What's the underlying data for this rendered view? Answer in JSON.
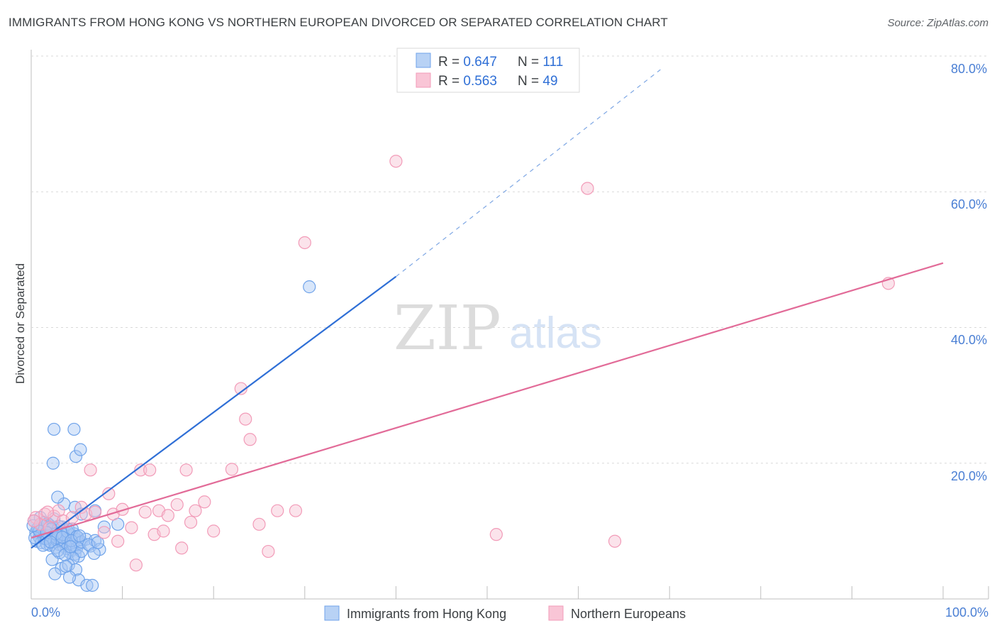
{
  "title": "IMMIGRANTS FROM HONG KONG VS NORTHERN EUROPEAN DIVORCED OR SEPARATED CORRELATION CHART",
  "source": "Source: ZipAtlas.com",
  "watermark": {
    "zip": "ZIP",
    "atlas": "atlas"
  },
  "colors": {
    "blue": "#6fa3ea",
    "blue_line": "#2f6fd6",
    "pink": "#f29bb8",
    "pink_line": "#e26b98",
    "axis_text": "#4a7fd4",
    "grid": "#d9d9d9"
  },
  "chart_data": {
    "type": "scatter",
    "xlabel": "",
    "ylabel": "Divorced or Separated",
    "xlim": [
      0,
      100
    ],
    "ylim": [
      0,
      80
    ],
    "x_tick_labels": [
      "0.0%",
      "100.0%"
    ],
    "y_tick_labels": [
      "20.0%",
      "40.0%",
      "60.0%",
      "80.0%"
    ],
    "y_ticks": [
      20,
      40,
      60,
      80
    ],
    "legend": [
      {
        "r_label": "R = ",
        "r": "0.647",
        "n_label": "N = ",
        "n": "111"
      },
      {
        "r_label": "R = ",
        "r": "0.563",
        "n_label": "N = ",
        "n": "49"
      }
    ],
    "series": [
      {
        "name": "Immigrants from Hong Kong",
        "color": "blue",
        "trend": {
          "x0": 0,
          "y0": 7.5,
          "x1": 40,
          "y1": 47.5,
          "dash_to_x": 69,
          "dash_to_y": 78
        },
        "points": [
          [
            0.3,
            11.5
          ],
          [
            0.5,
            9.8
          ],
          [
            0.6,
            8.5
          ],
          [
            0.8,
            10.2
          ],
          [
            0.9,
            9.1
          ],
          [
            1.0,
            11.0
          ],
          [
            1.1,
            8.3
          ],
          [
            1.2,
            9.6
          ],
          [
            1.3,
            10.5
          ],
          [
            1.4,
            8.9
          ],
          [
            1.5,
            9.4
          ],
          [
            1.6,
            10.0
          ],
          [
            1.7,
            8.1
          ],
          [
            1.8,
            9.0
          ],
          [
            1.9,
            10.8
          ],
          [
            2.0,
            9.3
          ],
          [
            2.1,
            7.9
          ],
          [
            2.2,
            8.8
          ],
          [
            2.3,
            10.1
          ],
          [
            2.4,
            9.5
          ],
          [
            2.5,
            8.4
          ],
          [
            2.6,
            9.9
          ],
          [
            2.7,
            7.6
          ],
          [
            2.8,
            8.7
          ],
          [
            2.9,
            10.4
          ],
          [
            3.0,
            9.2
          ],
          [
            3.1,
            8.0
          ],
          [
            3.2,
            9.7
          ],
          [
            3.3,
            8.6
          ],
          [
            3.4,
            10.6
          ],
          [
            3.5,
            7.8
          ],
          [
            3.6,
            9.0
          ],
          [
            3.7,
            8.3
          ],
          [
            3.8,
            9.8
          ],
          [
            3.9,
            7.4
          ],
          [
            4.0,
            8.9
          ],
          [
            4.1,
            10.2
          ],
          [
            4.2,
            6.9
          ],
          [
            4.3,
            8.5
          ],
          [
            4.4,
            9.4
          ],
          [
            4.5,
            7.2
          ],
          [
            4.6,
            8.0
          ],
          [
            4.7,
            9.6
          ],
          [
            4.8,
            6.6
          ],
          [
            4.9,
            8.8
          ],
          [
            5.0,
            7.5
          ],
          [
            5.1,
            9.1
          ],
          [
            5.2,
            6.3
          ],
          [
            5.3,
            8.2
          ],
          [
            5.5,
            7.0
          ],
          [
            1.0,
            12.0
          ],
          [
            1.5,
            11.3
          ],
          [
            2.0,
            10.9
          ],
          [
            2.5,
            11.8
          ],
          [
            3.0,
            10.7
          ],
          [
            0.7,
            10.4
          ],
          [
            1.2,
            10.9
          ],
          [
            1.8,
            11.1
          ],
          [
            2.2,
            10.3
          ],
          [
            2.8,
            9.0
          ],
          [
            3.5,
            9.5
          ],
          [
            4.0,
            9.9
          ],
          [
            4.5,
            10.3
          ],
          [
            5.0,
            9.2
          ],
          [
            5.5,
            8.4
          ],
          [
            6.0,
            8.8
          ],
          [
            6.5,
            7.8
          ],
          [
            7.0,
            8.6
          ],
          [
            7.5,
            7.3
          ],
          [
            8.0,
            10.6
          ],
          [
            3.6,
            14.0
          ],
          [
            2.9,
            15.0
          ],
          [
            4.8,
            13.5
          ],
          [
            7.0,
            13.0
          ],
          [
            5.5,
            12.5
          ],
          [
            9.5,
            11.0
          ],
          [
            2.4,
            20.0
          ],
          [
            4.6,
            6.0
          ],
          [
            3.3,
            4.5
          ],
          [
            4.1,
            5.0
          ],
          [
            4.9,
            4.3
          ],
          [
            2.6,
            3.7
          ],
          [
            3.1,
            6.8
          ],
          [
            2.3,
            5.8
          ],
          [
            5.2,
            2.8
          ],
          [
            4.2,
            3.2
          ],
          [
            6.1,
            2.0
          ],
          [
            6.7,
            2.0
          ],
          [
            3.8,
            4.8
          ],
          [
            2.5,
            25.0
          ],
          [
            4.7,
            25.0
          ],
          [
            4.9,
            21.0
          ],
          [
            5.4,
            22.0
          ],
          [
            1.6,
            8.9
          ],
          [
            0.4,
            9.0
          ],
          [
            0.9,
            10.0
          ],
          [
            1.7,
            9.8
          ],
          [
            2.7,
            9.6
          ],
          [
            3.4,
            9.1
          ],
          [
            4.4,
            8.6
          ],
          [
            5.3,
            9.3
          ],
          [
            6.3,
            8.0
          ],
          [
            6.9,
            6.7
          ],
          [
            7.3,
            8.3
          ],
          [
            1.3,
            7.9
          ],
          [
            2.1,
            8.4
          ],
          [
            2.9,
            7.1
          ],
          [
            3.7,
            6.5
          ],
          [
            4.3,
            7.7
          ],
          [
            30.5,
            46.0
          ],
          [
            0.2,
            10.8
          ]
        ]
      },
      {
        "name": "Northern Europeans",
        "color": "pink",
        "trend": {
          "x0": 0,
          "y0": 9.0,
          "x1": 100,
          "y1": 49.5
        },
        "points": [
          [
            0.5,
            12.0
          ],
          [
            1.0,
            11.0
          ],
          [
            1.5,
            12.5
          ],
          [
            2.0,
            10.5
          ],
          [
            2.5,
            12.2
          ],
          [
            3.0,
            13.0
          ],
          [
            3.5,
            11.5
          ],
          [
            4.5,
            12.0
          ],
          [
            5.5,
            13.5
          ],
          [
            6.0,
            12.5
          ],
          [
            6.5,
            19.0
          ],
          [
            7.0,
            12.8
          ],
          [
            8.0,
            9.8
          ],
          [
            8.5,
            15.5
          ],
          [
            9.0,
            12.5
          ],
          [
            9.5,
            8.5
          ],
          [
            10.0,
            13.2
          ],
          [
            11.0,
            10.5
          ],
          [
            11.5,
            5.0
          ],
          [
            12.0,
            19.0
          ],
          [
            13.0,
            19.0
          ],
          [
            12.5,
            12.8
          ],
          [
            13.5,
            9.5
          ],
          [
            14.0,
            13.0
          ],
          [
            14.5,
            10.0
          ],
          [
            15.0,
            12.3
          ],
          [
            16.0,
            13.9
          ],
          [
            16.5,
            7.5
          ],
          [
            17.0,
            19.0
          ],
          [
            17.5,
            11.3
          ],
          [
            18.0,
            13.0
          ],
          [
            19.0,
            14.3
          ],
          [
            20.0,
            10.0
          ],
          [
            22.0,
            19.1
          ],
          [
            23.0,
            31.0
          ],
          [
            23.5,
            26.5
          ],
          [
            24.0,
            23.5
          ],
          [
            25.0,
            11.0
          ],
          [
            26.0,
            7.0
          ],
          [
            27.0,
            13.0
          ],
          [
            29.0,
            13.0
          ],
          [
            30.0,
            52.5
          ],
          [
            40.0,
            64.5
          ],
          [
            51.0,
            9.5
          ],
          [
            61.0,
            60.5
          ],
          [
            64.0,
            8.5
          ],
          [
            94.0,
            46.5
          ],
          [
            0.3,
            11.5
          ],
          [
            1.8,
            12.8
          ]
        ]
      }
    ]
  },
  "bottom_legend": [
    "Immigrants from Hong Kong",
    "Northern Europeans"
  ]
}
